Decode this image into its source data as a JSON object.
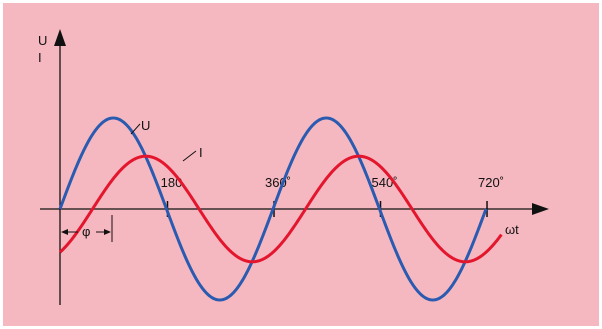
{
  "colors": {
    "background": "#f6b8c0",
    "border": "#ffffff",
    "axis": "#111111",
    "voltage": "#2a5bb0",
    "current": "#e3162e"
  },
  "chart_data": {
    "type": "line",
    "x_unit": "degrees",
    "xlim": [
      0,
      720
    ],
    "ylim": [
      -1,
      1
    ],
    "xlabel": "ωt",
    "ylabel_top": "U",
    "ylabel_bottom": "I",
    "ticks": [
      {
        "x": 180,
        "label": "180"
      },
      {
        "x": 360,
        "label": "360˚"
      },
      {
        "x": 540,
        "label": "540˚"
      },
      {
        "x": 720,
        "label": "720˚"
      }
    ],
    "phase_label": "φ",
    "phase_shift_deg": 55,
    "series": [
      {
        "name": "U",
        "amplitude": 1.0,
        "phase_deg": 0,
        "x_start": 0,
        "x_end": 720
      },
      {
        "name": "I",
        "amplitude": 0.58,
        "phase_deg": 55,
        "x_start": 0,
        "x_end": 746
      }
    ]
  }
}
